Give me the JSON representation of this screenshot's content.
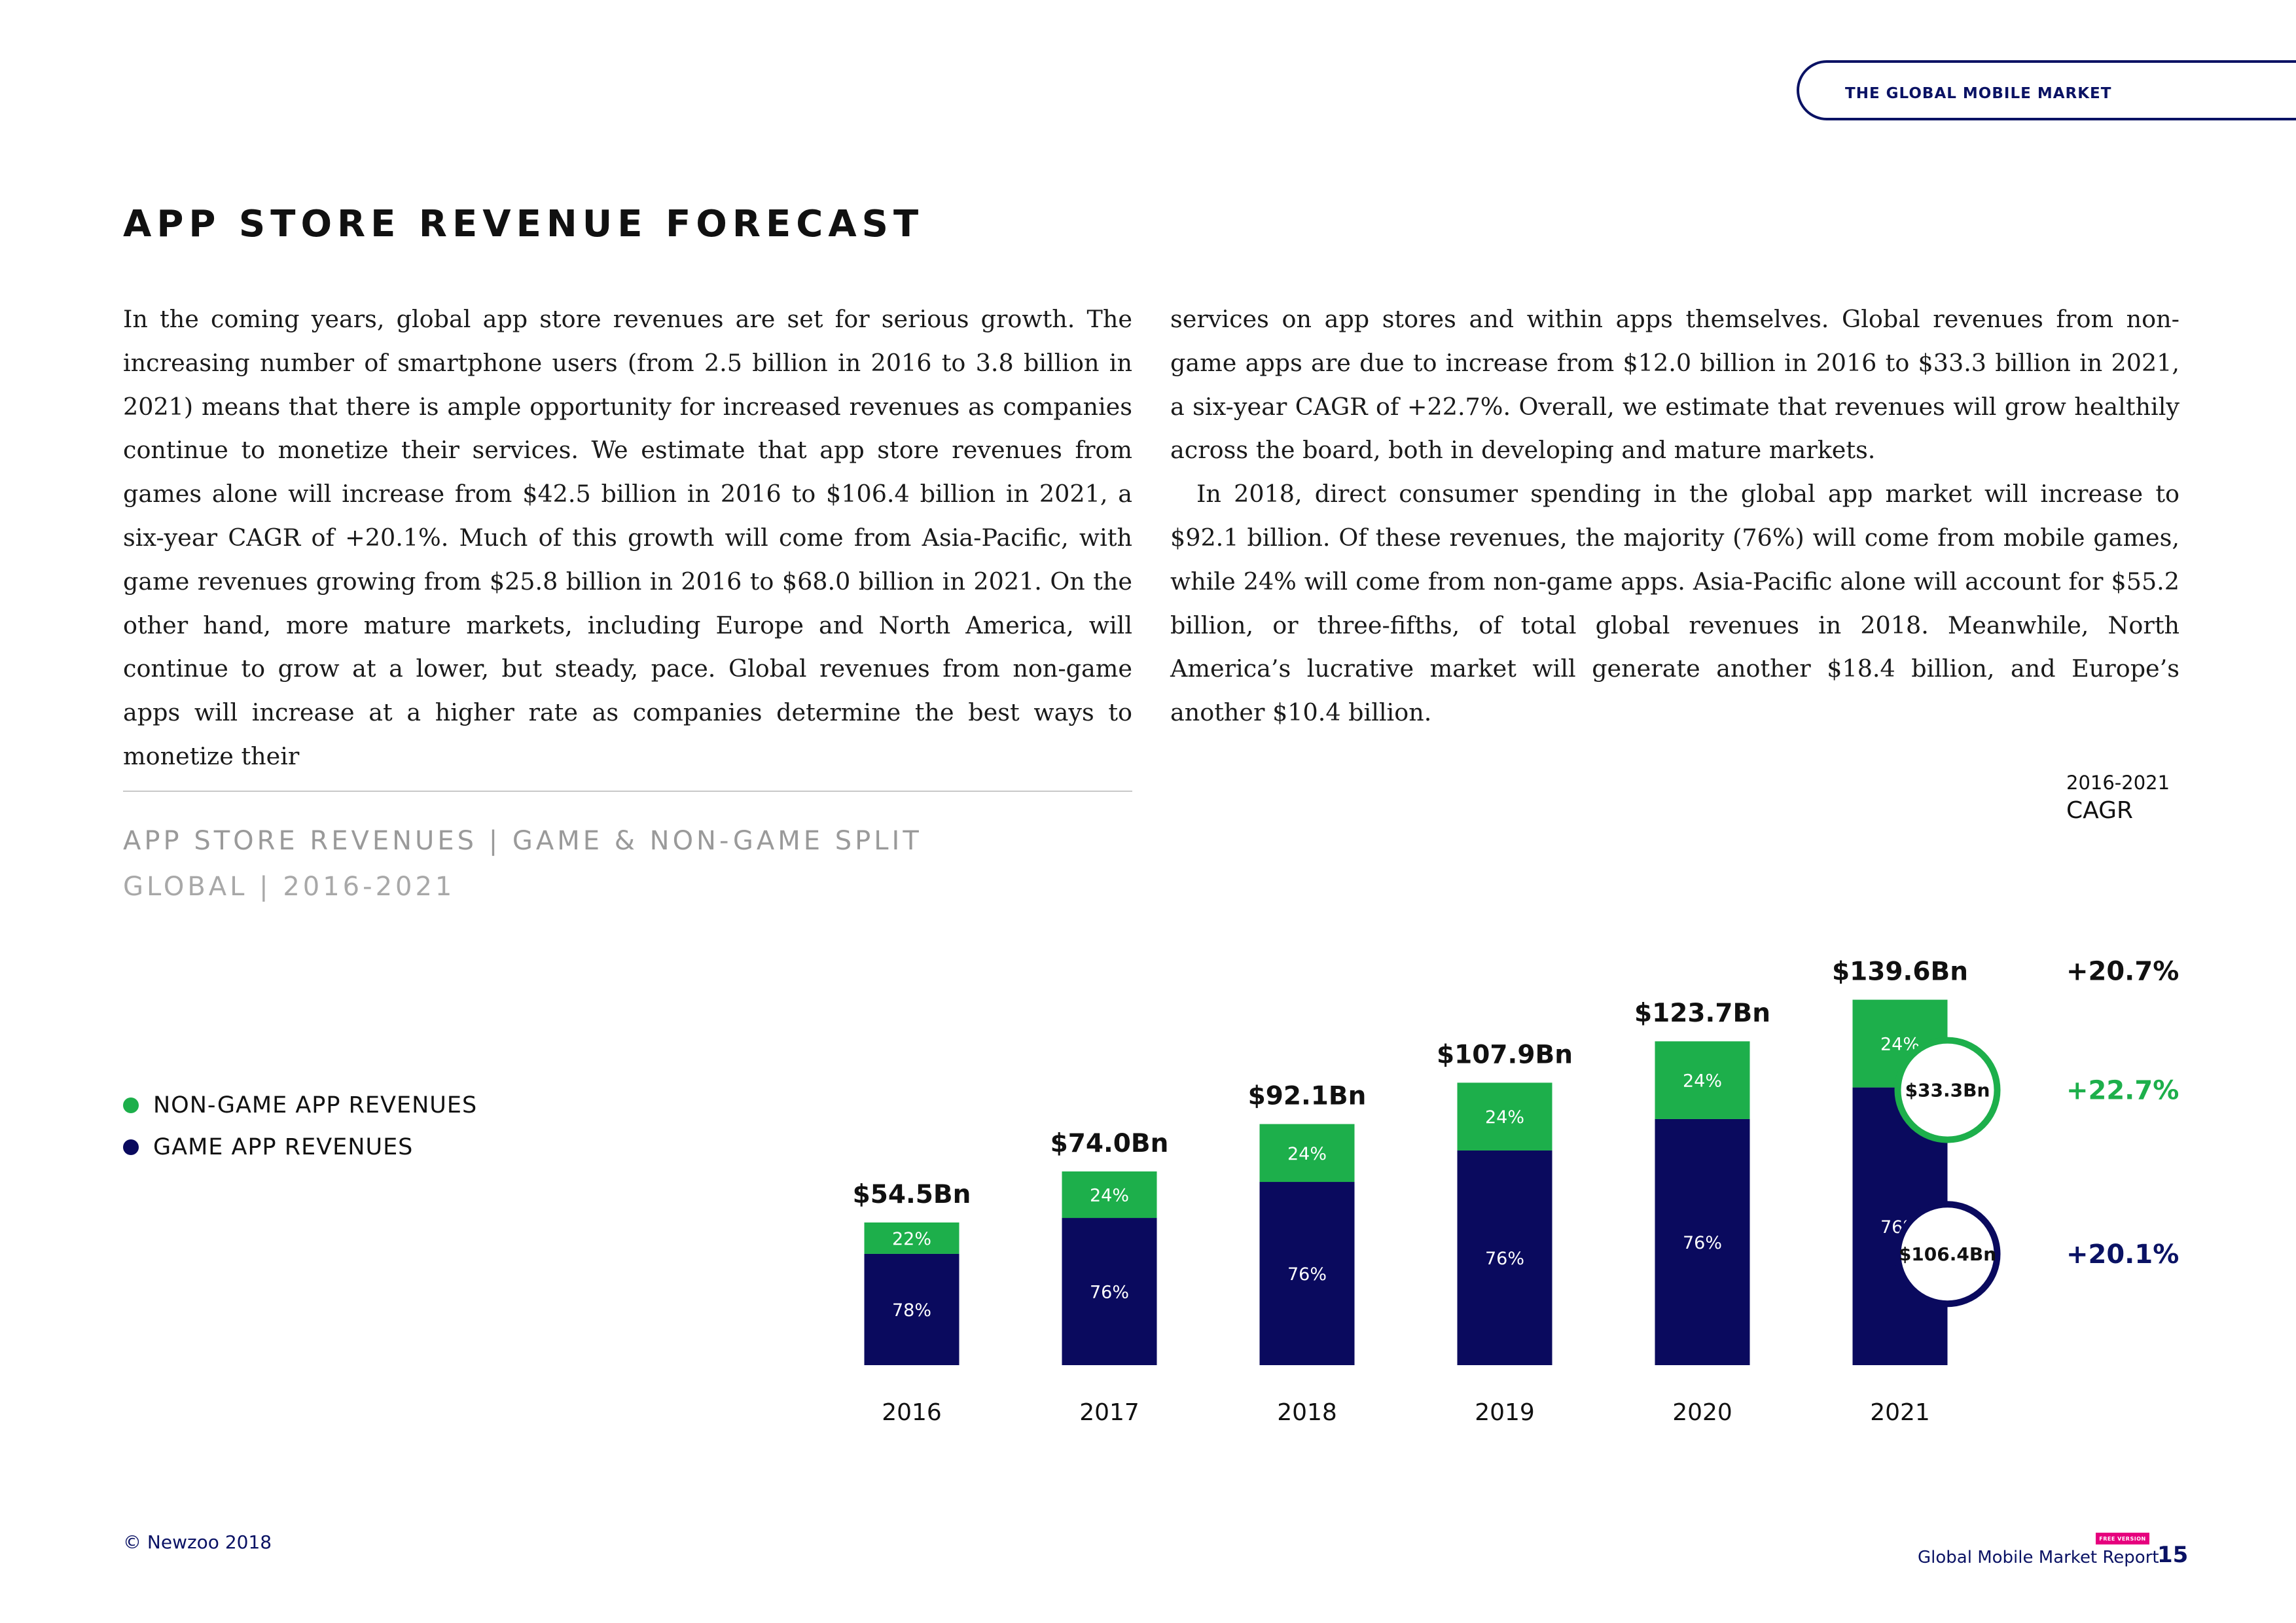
{
  "header": {
    "section_tab": "THE GLOBAL MOBILE MARKET"
  },
  "page_title": "APP STORE REVENUE FORECAST",
  "body": {
    "left_paragraph": "In the coming years, global app store revenues are set for serious growth. The increasing number of smartphone users (from 2.5 billion in 2016 to 3.8 billion in 2021) means that there is ample opportunity for increased revenues as companies continue to monetize their services. We estimate that app store revenues from games alone will increase from $42.5 billion in 2016 to $106.4 billion in 2021, a six-year CAGR of +20.1%. Much of this growth will come from Asia-Pacific, with game revenues growing from $25.8 billion in 2016 to $68.0 billion in 2021. On the other hand, more mature markets, including Europe and North America, will continue to grow at a lower, but steady, pace. Global revenues from non-game apps will increase at a higher rate as companies determine the best ways to monetize their",
    "right_paragraph_1": "services on app stores and within apps themselves. Global revenues from non-game apps are due to increase from $12.0 billion in 2016 to $33.3 billion in 2021, a six-year CAGR of +22.7%. Overall, we estimate that revenues will grow healthily across the board, both in developing and mature markets.",
    "right_paragraph_2": "In 2018, direct consumer spending in the global app market will increase to $92.1 billion. Of these revenues, the majority (76%) will come from mobile games, while 24% will come from non-game apps. Asia-Pacific alone will account for $55.2 billion, or three-fifths, of total global revenues in 2018. Meanwhile, North America’s lucrative market will generate another $18.4 billion, and Europe’s another $10.4 billion."
  },
  "chart_data": {
    "type": "bar",
    "stacked": true,
    "title": "APP STORE REVENUES | GAME & NON-GAME SPLIT",
    "subtitle": "GLOBAL | 2016-2021",
    "categories": [
      "2016",
      "2017",
      "2018",
      "2019",
      "2020",
      "2021"
    ],
    "totals": [
      54.5,
      74.0,
      92.1,
      107.9,
      123.7,
      139.6
    ],
    "total_labels": [
      "$54.5Bn",
      "$74.0Bn",
      "$92.1Bn",
      "$107.9Bn",
      "$123.7Bn",
      "$139.6Bn"
    ],
    "series": [
      {
        "name": "GAME APP REVENUES",
        "color": "#0a0a5e",
        "share_pct": [
          78,
          76,
          76,
          76,
          76,
          76
        ],
        "share_labels": [
          "78%",
          "76%",
          "76%",
          "76%",
          "76%",
          "76%"
        ]
      },
      {
        "name": "NON-GAME APP REVENUES",
        "color": "#1daf4b",
        "share_pct": [
          22,
          24,
          24,
          24,
          24,
          24
        ],
        "share_labels": [
          "22%",
          "24%",
          "24%",
          "24%",
          "24%",
          "24%"
        ]
      }
    ],
    "callouts": {
      "non_game_2021": "$33.3Bn",
      "game_2021": "$106.4Bn"
    },
    "cagr": {
      "period": "2016-2021",
      "label": "CAGR",
      "total": "+20.7%",
      "non_game": "+22.7%",
      "game": "+20.1%"
    },
    "xlabel": "",
    "ylabel": "",
    "ylim": [
      0,
      150
    ],
    "grid": false,
    "legend": "left"
  },
  "legend": {
    "non_game_label": "NON-GAME APP REVENUES",
    "game_label": "GAME APP REVENUES"
  },
  "colors": {
    "navy": "#0a0a5e",
    "green": "#1daf4b",
    "accent_blue": "#0a1264"
  },
  "footer": {
    "copyright": "© Newzoo 2018",
    "badge": "FREE VERSION",
    "report_name": "Global Mobile Market Report",
    "page_number": "15"
  }
}
